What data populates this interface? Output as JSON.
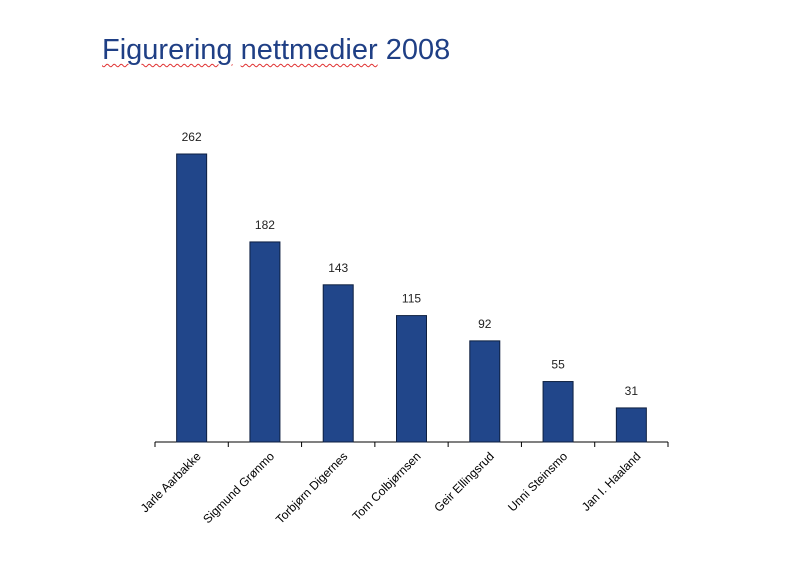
{
  "chart_data": {
    "type": "bar",
    "title": "Figurering nettmedier 2008",
    "title_words_spell_underlined": [
      "Figurering",
      "nettmedier"
    ],
    "title_rest": "2008",
    "categories": [
      "Jarle Aarbakke",
      "Sigmund Grønmo",
      "Torbjørn Digernes",
      "Tom Colbjørnsen",
      "Geir Ellingsrud",
      "Unni Steinsmo",
      "Jan I. Haaland"
    ],
    "values": [
      262,
      182,
      143,
      115,
      92,
      55,
      31
    ],
    "data_labels": [
      "262",
      "182",
      "143",
      "115",
      "92",
      "55",
      "31"
    ],
    "xlabel": "",
    "ylabel": "",
    "ylim": [
      0,
      262
    ],
    "grid": false,
    "legend": "none",
    "colors": {
      "bar": "#21468a",
      "bar_border": "#0d1f40",
      "title": "#1f3f85",
      "text": "#222222"
    }
  }
}
